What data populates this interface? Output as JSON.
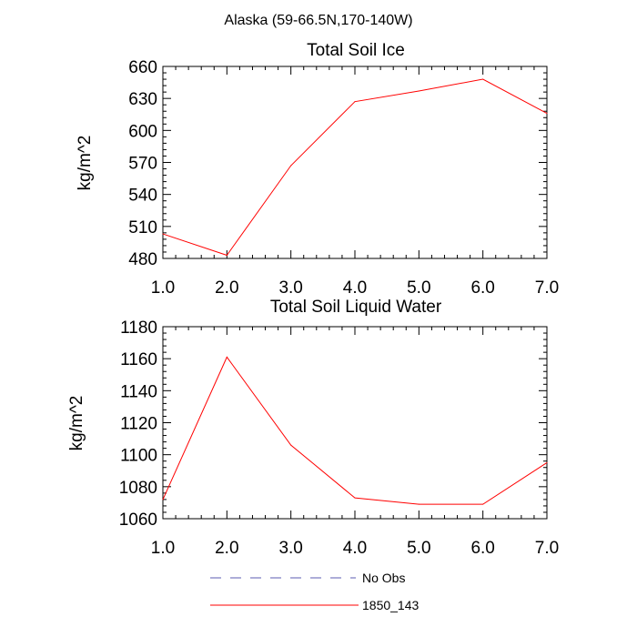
{
  "figure": {
    "main_title": "Alaska (59-66.5N,170-140W)"
  },
  "chart_data": [
    {
      "type": "line",
      "title": "Total Soil Ice",
      "xlabel": "",
      "ylabel": "kg/m^2",
      "x": [
        1,
        2,
        3,
        4,
        5,
        6,
        7
      ],
      "xlim": [
        1,
        7
      ],
      "ylim": [
        480,
        660
      ],
      "x_tick_labels": [
        "1.0",
        "2.0",
        "3.0",
        "4.0",
        "5.0",
        "6.0",
        "7.0"
      ],
      "y_ticks": [
        480,
        510,
        540,
        570,
        600,
        630,
        660
      ],
      "y_minor_step": 6,
      "series": [
        {
          "name": "1850_143",
          "color": "#ff0000",
          "values": [
            503,
            483,
            567,
            627,
            637,
            648,
            616
          ]
        }
      ]
    },
    {
      "type": "line",
      "title": "Total Soil Liquid Water",
      "xlabel": "",
      "ylabel": "kg/m^2",
      "x": [
        1,
        2,
        3,
        4,
        5,
        6,
        7
      ],
      "xlim": [
        1,
        7
      ],
      "ylim": [
        1060,
        1180
      ],
      "x_tick_labels": [
        "1.0",
        "2.0",
        "3.0",
        "4.0",
        "5.0",
        "6.0",
        "7.0"
      ],
      "y_ticks": [
        1060,
        1080,
        1100,
        1120,
        1140,
        1160,
        1180
      ],
      "y_minor_step": 4,
      "series": [
        {
          "name": "1850_143",
          "color": "#ff0000",
          "values": [
            1072,
            1161,
            1106,
            1073,
            1069,
            1069,
            1095
          ]
        }
      ]
    }
  ],
  "legend": {
    "placement": "bottom-center",
    "items": [
      {
        "label": "No Obs",
        "color": "#5b5bb0",
        "style": "dashed"
      },
      {
        "label": "1850_143",
        "color": "#ff0000",
        "style": "solid"
      }
    ]
  }
}
